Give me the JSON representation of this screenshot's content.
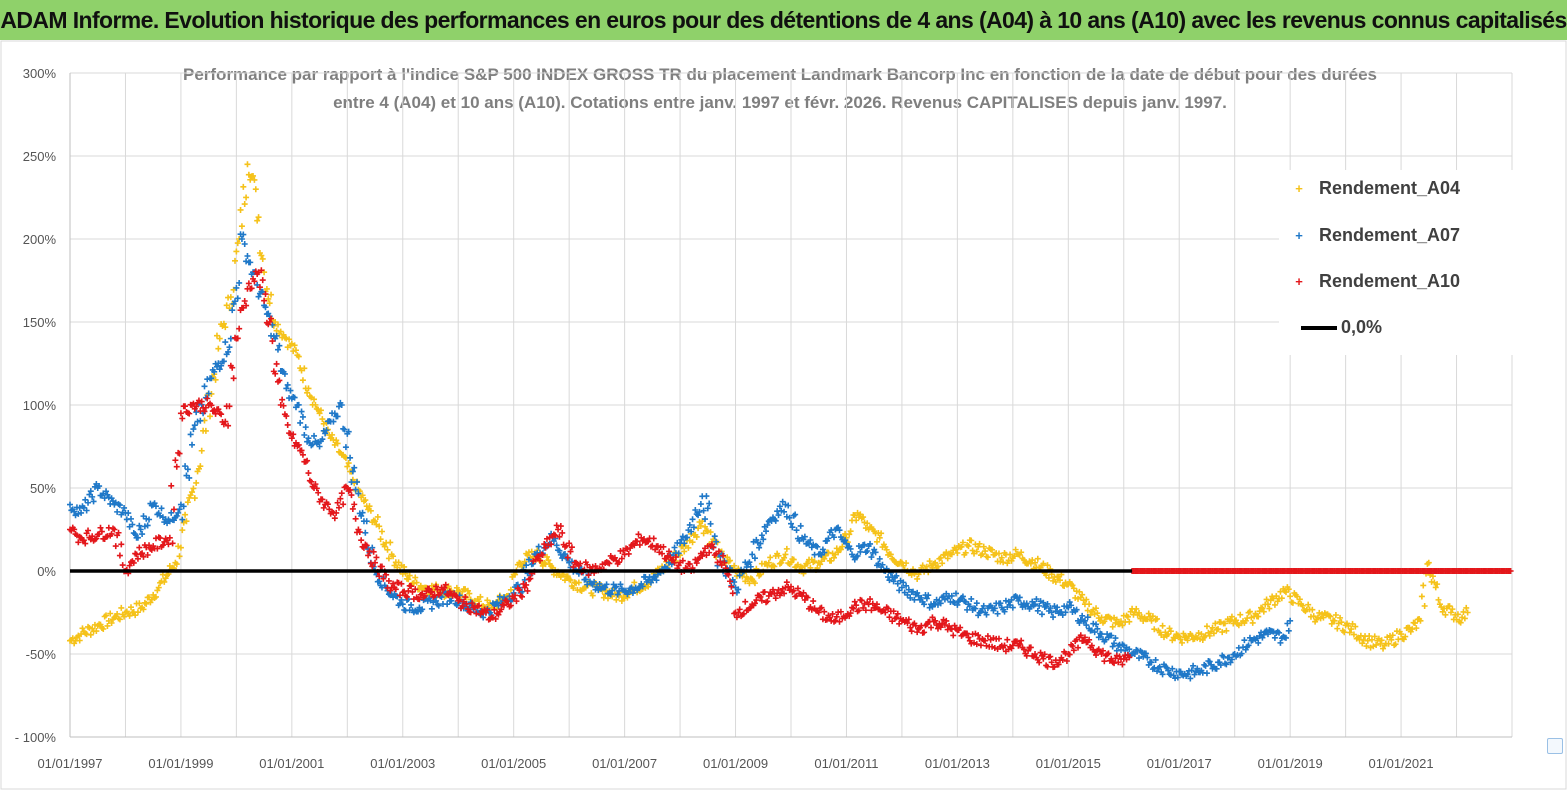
{
  "header": {
    "title": "ADAM Informe. Evolution historique des performances en euros pour des détentions de 4 ans (A04) à 10 ans (A10) avec les revenus connus capitalisés"
  },
  "colors": {
    "banner": "#8fd16a",
    "a04": "#f5c21a",
    "a07": "#1f78c8",
    "a10": "#e3171b",
    "zero": "#000000"
  },
  "chart_data": {
    "type": "scatter",
    "title_lines": [
      "Performance par rapport à l'indice S&P 500 INDEX GROSS TR  du placement Landmark Bancorp Inc en fonction de la date de début pour des durées",
      "entre 4 (A04) et 10 ans (A10).  Cotations entre janv. 1997 et févr. 2026. Revenus  CAPITALISES depuis janv. 1997."
    ],
    "y_ticks": [
      {
        "value": 300,
        "label": "300%"
      },
      {
        "value": 250,
        "label": "250%"
      },
      {
        "value": 200,
        "label": "200%"
      },
      {
        "value": 150,
        "label": "150%"
      },
      {
        "value": 100,
        "label": "100%"
      },
      {
        "value": 50,
        "label": "50%"
      },
      {
        "value": 0,
        "label": "0%"
      },
      {
        "value": -50,
        "label": "-50%"
      },
      {
        "value": -100,
        "label": "- 100%"
      }
    ],
    "ylim": [
      -100,
      300
    ],
    "xlim": [
      1997.0,
      2023.0
    ],
    "x_ticks": [
      {
        "value": 1997,
        "label": "01/01/1997"
      },
      {
        "value": 1999,
        "label": "01/01/1999"
      },
      {
        "value": 2001,
        "label": "01/01/2001"
      },
      {
        "value": 2003,
        "label": "01/01/2003"
      },
      {
        "value": 2005,
        "label": "01/01/2005"
      },
      {
        "value": 2007,
        "label": "01/01/2007"
      },
      {
        "value": 2009,
        "label": "01/01/2009"
      },
      {
        "value": 2011,
        "label": "01/01/2011"
      },
      {
        "value": 2013,
        "label": "01/01/2013"
      },
      {
        "value": 2015,
        "label": "01/01/2015"
      },
      {
        "value": 2017,
        "label": "01/01/2017"
      },
      {
        "value": 2019,
        "label": "01/01/2019"
      },
      {
        "value": 2021,
        "label": "01/01/2021"
      }
    ],
    "legend": {
      "position": "top-right",
      "items": [
        {
          "name": "Rendement_A04",
          "marker": "+"
        },
        {
          "name": "Rendement_A07",
          "marker": "+"
        },
        {
          "name": "Rendement_A10",
          "marker": "+"
        },
        {
          "name": "0,0%",
          "marker": "line"
        }
      ]
    },
    "series": [
      {
        "name": "Rendement_A04",
        "x": [
          1997.0,
          1997.2,
          1997.5,
          1997.8,
          1998.0,
          1998.3,
          1998.6,
          1998.9,
          1999.1,
          1999.3,
          1999.5,
          1999.7,
          1999.9,
          2000.05,
          2000.2,
          2000.35,
          2000.5,
          2000.7,
          2000.9,
          2001.1,
          2001.3,
          2001.5,
          2001.7,
          2001.9,
          2002.1,
          2002.3,
          2002.5,
          2002.8,
          2003.1,
          2003.4,
          2003.7,
          2004.0,
          2004.3,
          2004.6,
          2004.9,
          2005.1,
          2005.4,
          2005.7,
          2006.0,
          2006.3,
          2006.6,
          2006.9,
          2007.2,
          2007.5,
          2007.8,
          2008.1,
          2008.4,
          2008.7,
          2009.0,
          2009.3,
          2009.6,
          2009.9,
          2010.2,
          2010.5,
          2010.8,
          2011.0,
          2011.2,
          2011.4,
          2011.6,
          2011.8,
          2012.0,
          2012.3,
          2012.6,
          2012.9,
          2013.2,
          2013.5,
          2013.8,
          2014.1,
          2014.4,
          2014.7,
          2015.0,
          2015.3,
          2015.6,
          2015.9,
          2016.2,
          2016.5,
          2016.8,
          2017.1,
          2017.4,
          2017.7,
          2018.0,
          2018.3,
          2018.6,
          2018.9,
          2019.2,
          2019.5,
          2019.8,
          2020.1,
          2020.4,
          2020.7,
          2021.0,
          2021.2,
          2021.35,
          2021.5,
          2021.7,
          2021.9,
          2022.1,
          2022.2
        ],
        "values": [
          -42,
          -38,
          -33,
          -28,
          -25,
          -22,
          -10,
          5,
          30,
          60,
          100,
          140,
          165,
          200,
          245,
          230,
          180,
          150,
          140,
          130,
          110,
          95,
          80,
          70,
          55,
          42,
          30,
          10,
          -5,
          -10,
          -12,
          -12,
          -18,
          -22,
          -15,
          5,
          10,
          2,
          -5,
          -10,
          -12,
          -15,
          -10,
          -5,
          5,
          15,
          30,
          10,
          0,
          -5,
          5,
          10,
          2,
          5,
          10,
          20,
          35,
          25,
          20,
          10,
          5,
          -2,
          5,
          10,
          15,
          12,
          8,
          10,
          5,
          -2,
          -8,
          -20,
          -28,
          -32,
          -25,
          -30,
          -38,
          -40,
          -38,
          -35,
          -30,
          -28,
          -20,
          -12,
          -20,
          -28,
          -30,
          -35,
          -42,
          -45,
          -38,
          -35,
          -30,
          5,
          -20,
          -25,
          -28,
          -25
        ]
      },
      {
        "name": "Rendement_A07",
        "x": [
          1997.0,
          1997.2,
          1997.5,
          1997.8,
          1998.0,
          1998.2,
          1998.5,
          1998.8,
          1999.0,
          1999.3,
          1999.6,
          1999.9,
          2000.1,
          2000.3,
          2000.5,
          2000.7,
          2000.9,
          2001.1,
          2001.3,
          2001.5,
          2001.7,
          2001.9,
          2002.1,
          2002.3,
          2002.5,
          2002.7,
          2003.0,
          2003.3,
          2003.6,
          2003.9,
          2004.2,
          2004.5,
          2004.8,
          2005.1,
          2005.4,
          2005.7,
          2006.0,
          2006.3,
          2006.6,
          2006.9,
          2007.2,
          2007.5,
          2007.8,
          2008.1,
          2008.4,
          2008.7,
          2009.0,
          2009.3,
          2009.6,
          2009.9,
          2010.2,
          2010.5,
          2010.8,
          2011.1,
          2011.4,
          2011.7,
          2012.0,
          2012.3,
          2012.6,
          2012.9,
          2013.2,
          2013.5,
          2013.8,
          2014.1,
          2014.4,
          2014.7,
          2015.0,
          2015.3,
          2015.6,
          2015.9,
          2016.2,
          2016.5,
          2016.8,
          2017.1,
          2017.4,
          2017.7,
          2018.0,
          2018.3,
          2018.6,
          2018.9,
          2019.0
        ],
        "values": [
          40,
          35,
          50,
          40,
          35,
          20,
          40,
          30,
          40,
          90,
          120,
          140,
          200,
          180,
          160,
          140,
          110,
          100,
          80,
          75,
          90,
          100,
          60,
          30,
          0,
          -10,
          -20,
          -22,
          -18,
          -15,
          -22,
          -25,
          -18,
          -10,
          10,
          20,
          5,
          -5,
          -10,
          -12,
          -10,
          -5,
          5,
          20,
          45,
          10,
          -10,
          10,
          30,
          40,
          20,
          10,
          25,
          10,
          15,
          0,
          -10,
          -15,
          -20,
          -15,
          -20,
          -25,
          -22,
          -18,
          -20,
          -25,
          -22,
          -30,
          -38,
          -45,
          -50,
          -55,
          -60,
          -62,
          -60,
          -55,
          -50,
          -42,
          -38,
          -40,
          -30
        ]
      },
      {
        "name": "Rendement_A10",
        "x": [
          1997.0,
          1997.2,
          1997.5,
          1997.8,
          1998.0,
          1998.2,
          1998.5,
          1998.8,
          1999.0,
          1999.2,
          1999.5,
          1999.8,
          2000.0,
          2000.2,
          2000.4,
          2000.6,
          2000.8,
          2001.0,
          2001.2,
          2001.4,
          2001.6,
          2001.8,
          2002.0,
          2002.2,
          2002.5,
          2002.8,
          2003.1,
          2003.4,
          2003.7,
          2004.0,
          2004.3,
          2004.6,
          2004.9,
          2005.2,
          2005.5,
          2005.8,
          2006.1,
          2006.4,
          2006.7,
          2007.0,
          2007.3,
          2007.6,
          2007.9,
          2008.2,
          2008.5,
          2008.8,
          2009.0,
          2009.3,
          2009.6,
          2009.9,
          2010.2,
          2010.5,
          2010.8,
          2011.1,
          2011.4,
          2011.7,
          2012.0,
          2012.3,
          2012.6,
          2012.9,
          2013.2,
          2013.5,
          2013.8,
          2014.1,
          2014.4,
          2014.7,
          2015.0,
          2015.3,
          2015.6,
          2015.9,
          2016.1
        ],
        "values": [
          25,
          20,
          22,
          25,
          0,
          10,
          15,
          20,
          95,
          100,
          100,
          90,
          140,
          170,
          180,
          150,
          100,
          80,
          70,
          50,
          40,
          35,
          50,
          25,
          5,
          -10,
          -12,
          -15,
          -10,
          -18,
          -22,
          -28,
          -20,
          -10,
          10,
          25,
          5,
          0,
          5,
          10,
          20,
          15,
          5,
          0,
          15,
          5,
          -25,
          -20,
          -15,
          -10,
          -15,
          -25,
          -30,
          -22,
          -20,
          -25,
          -30,
          -35,
          -30,
          -35,
          -40,
          -42,
          -45,
          -45,
          -50,
          -55,
          -50,
          -40,
          -50,
          -55,
          -52
        ]
      },
      {
        "name": "0,0%",
        "x": [
          1997.0,
          2023.0
        ],
        "values": [
          0,
          0
        ]
      }
    ]
  }
}
